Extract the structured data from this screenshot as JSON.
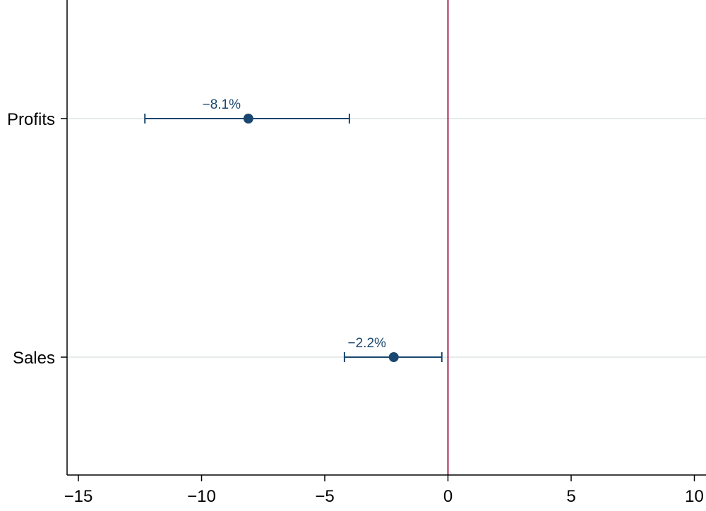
{
  "chart_data": {
    "type": "scatter",
    "subtype": "coefficient-plot-with-confidence-intervals",
    "title": "",
    "xlabel": "",
    "ylabel": "",
    "xlim": [
      -15.5,
      10.5
    ],
    "x_ticks": [
      -15,
      -10,
      -5,
      0,
      5,
      10
    ],
    "x_tick_labels": [
      "−15",
      "−10",
      "−5",
      "0",
      "5",
      "10"
    ],
    "categories": [
      "Profits",
      "Sales"
    ],
    "series": [
      {
        "estimates": [
          -8.1,
          -2.2
        ],
        "ci_low": [
          -12.3,
          -4.2
        ],
        "ci_high": [
          -4.0,
          -0.25
        ],
        "labels": [
          "−8.1%",
          "−2.2%"
        ]
      }
    ],
    "reference_line_x": 0,
    "grid": "horizontal-at-categories",
    "colors": {
      "marker": "#1a476f",
      "label": "#1a476f",
      "reference_line": "#a8204d",
      "grid": "#e6ebe9",
      "axis": "#000000"
    }
  }
}
